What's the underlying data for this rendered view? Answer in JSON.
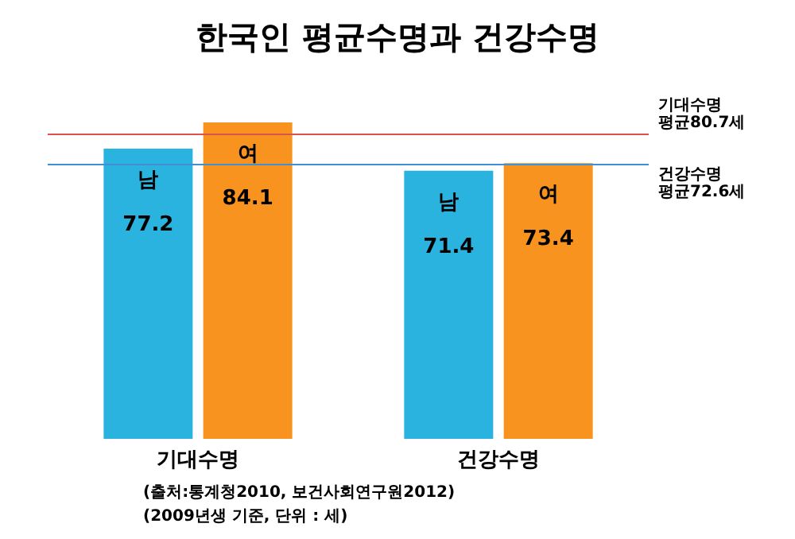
{
  "chart_data": {
    "type": "bar",
    "title": "한국인 평균수명과 건강수명",
    "categories": [
      "기대수명",
      "건강수명"
    ],
    "series": [
      {
        "name": "남",
        "color": "#2bb3e0",
        "values": [
          77.2,
          71.4
        ]
      },
      {
        "name": "여",
        "color": "#f7931e",
        "values": [
          84.1,
          73.4
        ]
      }
    ],
    "data_labels": true,
    "ref_lines": [
      {
        "axis": "y",
        "value": 80.7,
        "label": "기대수명\n평균80.7세",
        "color": "#d9534f"
      },
      {
        "axis": "y",
        "value": 72.6,
        "label": "건강수명\n평균72.6세",
        "color": "#3f8fd2"
      }
    ],
    "annotations": [
      "(출처:통계청2010, 보건사회연구원2012)",
      "(2009년생 기준, 단위 : 세)"
    ],
    "grid": false,
    "legend": false
  }
}
